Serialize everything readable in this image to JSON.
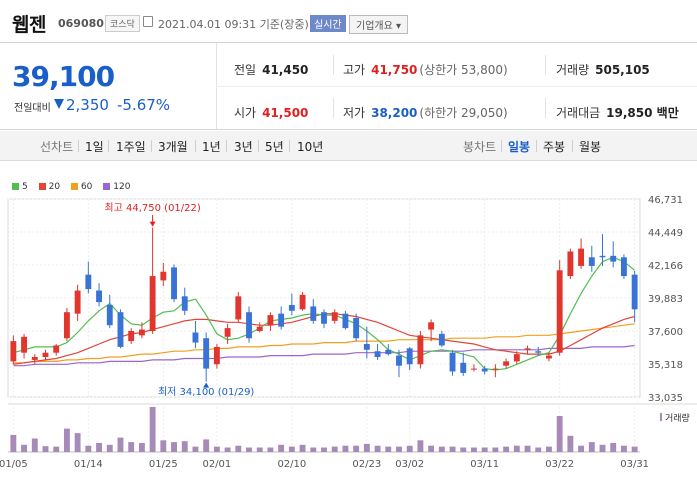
{
  "header": {
    "name": "웹젠",
    "code": "069080",
    "market": "코스닥",
    "datetime": "2021.04.01 09:31",
    "basis": "기준(장중)",
    "realtime_label": "실시간",
    "overview_label": "기업개요 ▾"
  },
  "price": {
    "current": "39,100",
    "change_label": "전일대비",
    "change_value": "2,350",
    "change_percent": "-5.67%",
    "prev_close_label": "전일",
    "prev_close": "41,450",
    "high_label": "고가",
    "high": "41,750",
    "upper_limit_label": "(상한가 53,800)",
    "volume_label": "거래량",
    "volume": "505,105",
    "open_label": "시가",
    "open": "41,500",
    "low_label": "저가",
    "low": "38,200",
    "lower_limit_label": "(하한가 29,050)",
    "amount_label": "거래대금",
    "amount": "19,850 백만"
  },
  "period_bar": {
    "label": "선차트",
    "periods": [
      "1일",
      "1주일",
      "3개월",
      "1년",
      "3년",
      "5년",
      "10년"
    ],
    "candle_label": "봉차트",
    "candle_periods": [
      "일봉",
      "주봉",
      "월봉"
    ],
    "active": "일봉"
  },
  "colors": {
    "up": "#e02020",
    "down": "#1a5fc8",
    "candle_up": "#e0362e",
    "candle_down": "#3a73d6",
    "ma5": "#4fbf4f",
    "ma20": "#e0453a",
    "ma60": "#f0a020",
    "ma120": "#9a66cc",
    "volume": "#a88ab8"
  },
  "chart_data": {
    "type": "candlestick",
    "legend": [
      {
        "name": "5",
        "color": "#4fbf4f"
      },
      {
        "name": "20",
        "color": "#e0453a"
      },
      {
        "name": "60",
        "color": "#f0a020"
      },
      {
        "name": "120",
        "color": "#9a66cc"
      }
    ],
    "y_ticks": [
      "46,731",
      "44,449",
      "42,166",
      "39,883",
      "37,600",
      "35,318",
      "33,035"
    ],
    "ylim": [
      33035,
      46731
    ],
    "x_ticks": [
      {
        "label": "01/05",
        "i": 0
      },
      {
        "label": "01/14",
        "i": 7
      },
      {
        "label": "01/25",
        "i": 14
      },
      {
        "label": "02/01",
        "i": 19
      },
      {
        "label": "02/10",
        "i": 26
      },
      {
        "label": "02/23",
        "i": 33
      },
      {
        "label": "03/02",
        "i": 37
      },
      {
        "label": "03/11",
        "i": 44
      },
      {
        "label": "03/22",
        "i": 51
      },
      {
        "label": "03/31",
        "i": 58
      }
    ],
    "annotations": [
      {
        "label": "최고 44,750 (01/22)",
        "i": 13,
        "value": 44750,
        "type": "high"
      },
      {
        "label": "최저 34,100 (01/29)",
        "i": 18,
        "value": 34100,
        "type": "low"
      }
    ],
    "volume_label": "거래량",
    "candles": [
      {
        "o": 35500,
        "h": 37300,
        "l": 35300,
        "c": 36900
      },
      {
        "o": 36100,
        "h": 37400,
        "l": 35700,
        "c": 37200
      },
      {
        "o": 35600,
        "h": 36000,
        "l": 35300,
        "c": 35800
      },
      {
        "o": 35800,
        "h": 36300,
        "l": 35600,
        "c": 36100
      },
      {
        "o": 36100,
        "h": 36700,
        "l": 35900,
        "c": 36600
      },
      {
        "o": 37100,
        "h": 39200,
        "l": 36900,
        "c": 38900
      },
      {
        "o": 38800,
        "h": 40800,
        "l": 38300,
        "c": 40400
      },
      {
        "o": 41500,
        "h": 42400,
        "l": 40200,
        "c": 40500
      },
      {
        "o": 40400,
        "h": 40900,
        "l": 39300,
        "c": 39600
      },
      {
        "o": 39400,
        "h": 40100,
        "l": 37800,
        "c": 38000
      },
      {
        "o": 38900,
        "h": 39100,
        "l": 36400,
        "c": 36500
      },
      {
        "o": 36900,
        "h": 37800,
        "l": 36700,
        "c": 37600
      },
      {
        "o": 37300,
        "h": 38200,
        "l": 37100,
        "c": 37700
      },
      {
        "o": 37600,
        "h": 44750,
        "l": 37400,
        "c": 41400
      },
      {
        "o": 41100,
        "h": 42300,
        "l": 40700,
        "c": 41700
      },
      {
        "o": 42000,
        "h": 42200,
        "l": 39600,
        "c": 39800
      },
      {
        "o": 40000,
        "h": 40600,
        "l": 38700,
        "c": 39000
      },
      {
        "o": 37500,
        "h": 38300,
        "l": 36400,
        "c": 36800
      },
      {
        "o": 37100,
        "h": 37500,
        "l": 34100,
        "c": 35000
      },
      {
        "o": 35300,
        "h": 36700,
        "l": 35000,
        "c": 36500
      },
      {
        "o": 37200,
        "h": 38100,
        "l": 36700,
        "c": 37800
      },
      {
        "o": 38400,
        "h": 40300,
        "l": 38200,
        "c": 40000
      },
      {
        "o": 38900,
        "h": 39300,
        "l": 36800,
        "c": 37100
      },
      {
        "o": 37600,
        "h": 38200,
        "l": 37500,
        "c": 37900
      },
      {
        "o": 38000,
        "h": 38900,
        "l": 37600,
        "c": 38700
      },
      {
        "o": 38800,
        "h": 39300,
        "l": 37700,
        "c": 37900
      },
      {
        "o": 39400,
        "h": 40200,
        "l": 38700,
        "c": 39000
      },
      {
        "o": 39100,
        "h": 40300,
        "l": 39000,
        "c": 40100
      },
      {
        "o": 39300,
        "h": 39800,
        "l": 38100,
        "c": 38300
      },
      {
        "o": 38900,
        "h": 39100,
        "l": 37800,
        "c": 38100
      },
      {
        "o": 38300,
        "h": 39100,
        "l": 38100,
        "c": 38900
      },
      {
        "o": 38800,
        "h": 39000,
        "l": 37700,
        "c": 37800
      },
      {
        "o": 38500,
        "h": 38800,
        "l": 36900,
        "c": 37100
      },
      {
        "o": 36700,
        "h": 37900,
        "l": 35700,
        "c": 36300
      },
      {
        "o": 36200,
        "h": 36700,
        "l": 35600,
        "c": 35800
      },
      {
        "o": 36300,
        "h": 36700,
        "l": 35900,
        "c": 36000
      },
      {
        "o": 35900,
        "h": 36300,
        "l": 34400,
        "c": 35200
      },
      {
        "o": 36400,
        "h": 36500,
        "l": 34900,
        "c": 35300
      },
      {
        "o": 35300,
        "h": 37600,
        "l": 35000,
        "c": 37300
      },
      {
        "o": 37700,
        "h": 38400,
        "l": 36900,
        "c": 38200
      },
      {
        "o": 37400,
        "h": 37600,
        "l": 36500,
        "c": 36600
      },
      {
        "o": 36100,
        "h": 36300,
        "l": 34500,
        "c": 34800
      },
      {
        "o": 35400,
        "h": 36100,
        "l": 34500,
        "c": 34700
      },
      {
        "o": 35000,
        "h": 35300,
        "l": 34800,
        "c": 35000
      },
      {
        "o": 35000,
        "h": 35200,
        "l": 34600,
        "c": 34800
      },
      {
        "o": 35000,
        "h": 35300,
        "l": 34400,
        "c": 35000
      },
      {
        "o": 35200,
        "h": 35700,
        "l": 35000,
        "c": 35500
      },
      {
        "o": 35500,
        "h": 36200,
        "l": 35300,
        "c": 36000
      },
      {
        "o": 36300,
        "h": 36600,
        "l": 36000,
        "c": 36400
      },
      {
        "o": 36200,
        "h": 36500,
        "l": 35900,
        "c": 36100
      },
      {
        "o": 35700,
        "h": 36100,
        "l": 35500,
        "c": 35900
      },
      {
        "o": 36100,
        "h": 42500,
        "l": 35900,
        "c": 41800
      },
      {
        "o": 41400,
        "h": 43300,
        "l": 41200,
        "c": 43100
      },
      {
        "o": 42100,
        "h": 44000,
        "l": 41900,
        "c": 43300
      },
      {
        "o": 42700,
        "h": 43500,
        "l": 41700,
        "c": 42100
      },
      {
        "o": 42800,
        "h": 44300,
        "l": 42100,
        "c": 42700
      },
      {
        "o": 42800,
        "h": 43800,
        "l": 42000,
        "c": 42400
      },
      {
        "o": 42700,
        "h": 42900,
        "l": 41200,
        "c": 41400
      },
      {
        "o": 41500,
        "h": 41750,
        "l": 38200,
        "c": 39100
      }
    ],
    "volume": [
      38,
      16,
      30,
      13,
      12,
      52,
      42,
      14,
      20,
      16,
      32,
      22,
      20,
      100,
      26,
      22,
      24,
      12,
      28,
      12,
      10,
      14,
      10,
      10,
      10,
      16,
      12,
      16,
      10,
      10,
      12,
      14,
      14,
      18,
      14,
      12,
      12,
      14,
      26,
      14,
      12,
      12,
      10,
      10,
      10,
      10,
      12,
      14,
      14,
      10,
      12,
      80,
      36,
      14,
      22,
      16,
      20,
      14,
      12
    ],
    "ma5": [
      36100,
      36300,
      36500,
      36500,
      36500,
      36800,
      37500,
      38300,
      39000,
      39500,
      38700,
      38100,
      38000,
      38500,
      38900,
      39000,
      39600,
      39800,
      38700,
      37400,
      37000,
      37100,
      37400,
      37800,
      38300,
      38400,
      38500,
      38700,
      38800,
      38700,
      38700,
      38400,
      38100,
      37600,
      37000,
      36300,
      36000,
      35600,
      35900,
      36200,
      36300,
      36200,
      36000,
      35800,
      35000,
      34900,
      35000,
      35300,
      35600,
      35900,
      36100,
      37300,
      38800,
      40200,
      41400,
      42400,
      42700,
      42400,
      41800
    ],
    "ma20": [
      35300,
      35400,
      35500,
      35600,
      35700,
      35900,
      36100,
      36400,
      36700,
      37000,
      37200,
      37400,
      37500,
      37700,
      37900,
      38100,
      38300,
      38400,
      38400,
      38300,
      38200,
      38200,
      38100,
      38000,
      38000,
      38100,
      38200,
      38400,
      38600,
      38800,
      38800,
      38700,
      38600,
      38400,
      38200,
      37900,
      37600,
      37300,
      37200,
      37100,
      37000,
      36900,
      36800,
      36700,
      36500,
      36300,
      36200,
      36100,
      36000,
      36000,
      36000,
      36200,
      36600,
      37000,
      37400,
      37800,
      38100,
      38400,
      38600
    ],
    "ma60": [
      35400,
      35400,
      35500,
      35500,
      35500,
      35600,
      35600,
      35700,
      35700,
      35800,
      35800,
      35900,
      36000,
      36000,
      36100,
      36200,
      36200,
      36300,
      36300,
      36400,
      36400,
      36500,
      36500,
      36500,
      36600,
      36600,
      36700,
      36700,
      36700,
      36800,
      36800,
      36800,
      36900,
      36900,
      36900,
      36900,
      37000,
      37000,
      37000,
      37000,
      37000,
      37100,
      37100,
      37100,
      37100,
      37200,
      37200,
      37200,
      37300,
      37300,
      37300,
      37400,
      37500,
      37600,
      37700,
      37800,
      37900,
      38000,
      38100
    ],
    "ma120": [
      35200,
      35200,
      35300,
      35300,
      35300,
      35300,
      35400,
      35400,
      35400,
      35500,
      35500,
      35500,
      35500,
      35600,
      35600,
      35600,
      35700,
      35700,
      35700,
      35700,
      35800,
      35800,
      35800,
      35800,
      35900,
      35900,
      35900,
      35900,
      36000,
      36000,
      36000,
      36000,
      36100,
      36100,
      36100,
      36100,
      36100,
      36200,
      36200,
      36200,
      36200,
      36200,
      36200,
      36300,
      36300,
      36300,
      36300,
      36300,
      36300,
      36300,
      36400,
      36400,
      36400,
      36400,
      36500,
      36500,
      36500,
      36500,
      36600
    ]
  }
}
